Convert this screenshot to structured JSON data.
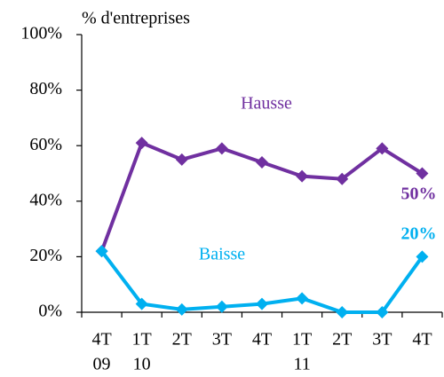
{
  "chart_data": {
    "type": "line",
    "ylabel": "% d'entreprises",
    "categories": [
      "4T",
      "1T",
      "2T",
      "3T",
      "4T",
      "1T",
      "2T",
      "3T",
      "4T"
    ],
    "category_years": [
      "09",
      "10",
      null,
      null,
      null,
      "11",
      null,
      null,
      null
    ],
    "series": [
      {
        "name": "Hausse",
        "color": "#7030a0",
        "values": [
          22,
          61,
          55,
          59,
          54,
          49,
          48,
          59,
          50
        ],
        "value_labels": [
          null,
          null,
          null,
          null,
          null,
          null,
          null,
          null,
          "50%"
        ]
      },
      {
        "name": "Baisse",
        "color": "#00b0f0",
        "values": [
          22,
          3,
          1,
          2,
          3,
          5,
          0,
          0,
          20
        ],
        "value_labels": [
          null,
          null,
          null,
          null,
          null,
          null,
          null,
          null,
          "20%"
        ]
      }
    ],
    "ylim": [
      0,
      100
    ],
    "yticks": [
      {
        "value": 0,
        "label": "0%"
      },
      {
        "value": 20,
        "label": "20%"
      },
      {
        "value": 40,
        "label": "40%"
      },
      {
        "value": 60,
        "label": "60%"
      },
      {
        "value": 80,
        "label": "80%"
      },
      {
        "value": 100,
        "label": "100%"
      }
    ],
    "grid": false
  }
}
